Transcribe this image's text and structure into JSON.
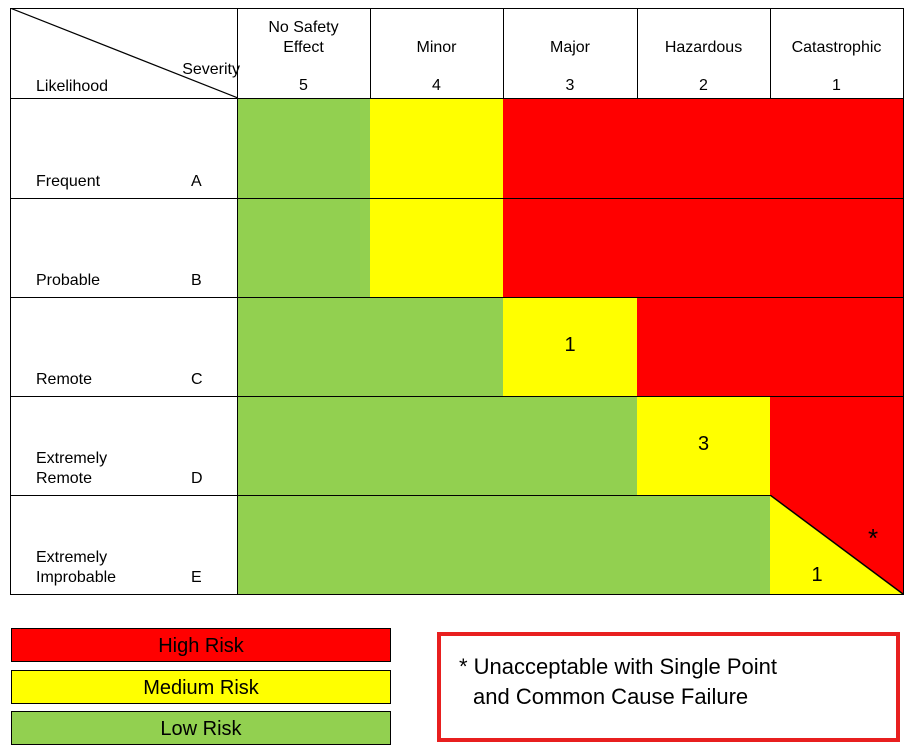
{
  "colors": {
    "high": "#ff0000",
    "medium": "#ffff00",
    "low": "#92d050",
    "note_border": "#e81f1f"
  },
  "corner": {
    "severity_label": "Severity",
    "likelihood_label": "Likelihood"
  },
  "columns": [
    {
      "line1": "No Safety",
      "line2": "Effect",
      "number": "5"
    },
    {
      "line1": "",
      "line2": "Minor",
      "number": "4"
    },
    {
      "line1": "",
      "line2": "Major",
      "number": "3"
    },
    {
      "line1": "",
      "line2": "Hazardous",
      "number": "2"
    },
    {
      "line1": "",
      "line2": "Catastrophic",
      "number": "1"
    }
  ],
  "rows": [
    {
      "label_line1": "",
      "label_line2": "Frequent",
      "letter": "A",
      "cells": [
        "low",
        "medium",
        "high",
        "high",
        "high"
      ],
      "counts": [
        "",
        "",
        "",
        "",
        ""
      ]
    },
    {
      "label_line1": "",
      "label_line2": "Probable",
      "letter": "B",
      "cells": [
        "low",
        "medium",
        "high",
        "high",
        "high"
      ],
      "counts": [
        "",
        "",
        "",
        "",
        ""
      ]
    },
    {
      "label_line1": "",
      "label_line2": "Remote",
      "letter": "C",
      "cells": [
        "low",
        "low",
        "medium",
        "high",
        "high"
      ],
      "counts": [
        "",
        "",
        "1",
        "",
        ""
      ]
    },
    {
      "label_line1": "Extremely",
      "label_line2": "Remote",
      "letter": "D",
      "cells": [
        "low",
        "low",
        "low",
        "medium",
        "high"
      ],
      "counts": [
        "",
        "",
        "",
        "3",
        ""
      ]
    },
    {
      "label_line1": "Extremely",
      "label_line2": "Improbable",
      "letter": "E",
      "cells": [
        "low",
        "low",
        "low",
        "low",
        "split"
      ],
      "counts": [
        "",
        "",
        "",
        "",
        ""
      ]
    }
  ],
  "split_cell": {
    "upper_color": "high",
    "lower_color": "medium",
    "upper_mark": "*",
    "lower_count": "1"
  },
  "legend": {
    "high": "High Risk",
    "medium": "Medium Risk",
    "low": "Low Risk"
  },
  "note": {
    "line1": "* Unacceptable with Single Point",
    "line2": "and Common Cause Failure"
  }
}
